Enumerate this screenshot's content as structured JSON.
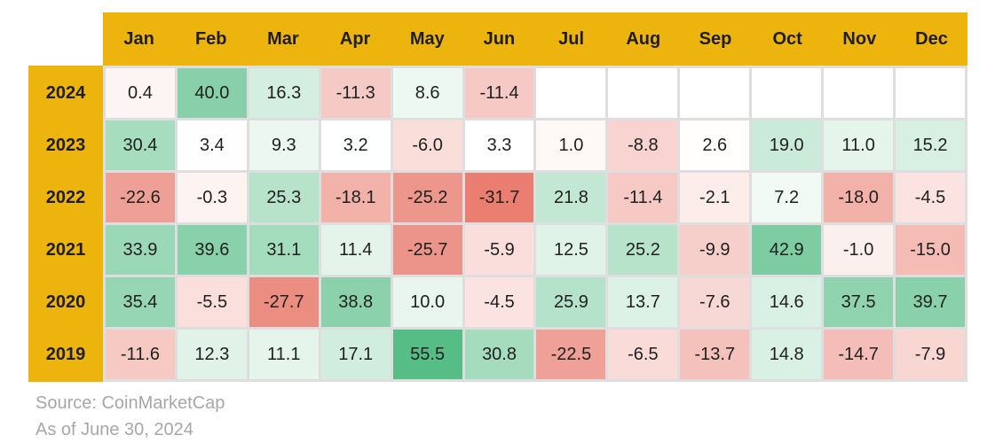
{
  "chart_data": {
    "type": "heatmap",
    "columns": [
      "Jan",
      "Feb",
      "Mar",
      "Apr",
      "May",
      "Jun",
      "Jul",
      "Aug",
      "Sep",
      "Oct",
      "Nov",
      "Dec"
    ],
    "rows": [
      "2024",
      "2023",
      "2022",
      "2021",
      "2020",
      "2019"
    ],
    "values": [
      [
        0.4,
        40.0,
        16.3,
        -11.3,
        8.6,
        -11.4,
        null,
        null,
        null,
        null,
        null,
        null
      ],
      [
        30.4,
        3.4,
        9.3,
        3.2,
        -6.0,
        3.3,
        1.0,
        -8.8,
        2.6,
        19.0,
        11.0,
        15.2
      ],
      [
        -22.6,
        -0.3,
        25.3,
        -18.1,
        -25.2,
        -31.7,
        21.8,
        -11.4,
        -2.1,
        7.2,
        -18.0,
        -4.5
      ],
      [
        33.9,
        39.6,
        31.1,
        11.4,
        -25.7,
        -5.9,
        12.5,
        25.2,
        -9.9,
        42.9,
        -1.0,
        -15.0
      ],
      [
        35.4,
        -5.5,
        -27.7,
        38.8,
        10.0,
        -4.5,
        25.9,
        13.7,
        -7.6,
        14.6,
        37.5,
        39.7
      ],
      [
        -11.6,
        12.3,
        11.1,
        17.1,
        55.5,
        30.8,
        -22.5,
        -6.5,
        -13.7,
        14.8,
        -14.7,
        -7.9
      ]
    ],
    "value_format": "one_decimal",
    "source": "Source: CoinMarketCap",
    "as_of": "As of June 30, 2024",
    "colors": {
      "header_gold": "#EEB40E",
      "positive_max": "#55BD85",
      "negative_max": "#E97E71",
      "neutral": "#FFFFFF",
      "empty_cell": "#FFFFFF",
      "gutter": "#DEDEDE",
      "cell_text": "#1F1F1F",
      "header_text": "#1E1E1E",
      "footer_text": "#A7A7A7"
    },
    "scale": {
      "min": -31.7,
      "mid": 3.0,
      "max": 55.5
    },
    "layout": {
      "legend": "none",
      "grid_gaps": true
    }
  }
}
